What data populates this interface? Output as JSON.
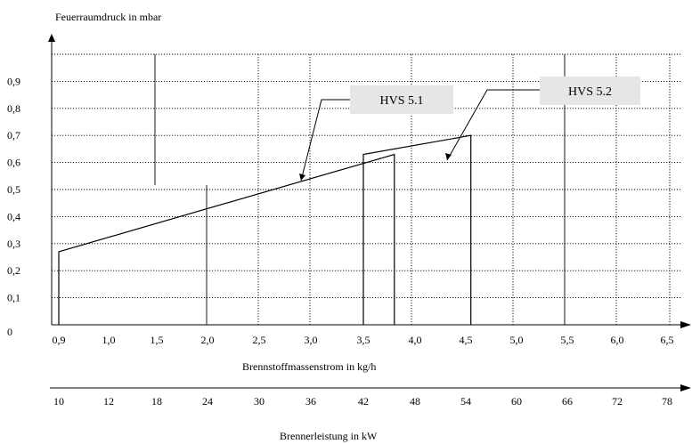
{
  "chart_data": {
    "type": "line",
    "ylabel": "Feuerraumdruck in mbar",
    "xlabel": "Brennstoffmassenstrom in kg/h",
    "x2label": "Brennerleistung in kW",
    "y_ticks": [
      "0",
      "0,1",
      "0,2",
      "0,3",
      "0,4",
      "0,5",
      "0,6",
      "0,7",
      "0,8",
      "0,9"
    ],
    "ylim": [
      0,
      1.05
    ],
    "x_ticks": [
      "0,9",
      "1,0",
      "1,5",
      "2,0",
      "2,5",
      "3,0",
      "3,5",
      "4,0",
      "4,5",
      "5,0",
      "5,5",
      "6,0",
      "6,5"
    ],
    "x2_ticks": [
      "10",
      "12",
      "18",
      "24",
      "30",
      "36",
      "42",
      "48",
      "54",
      "60",
      "66",
      "72",
      "78"
    ],
    "grid": true,
    "series": [
      {
        "name": "HVS 5.1",
        "color": "#000000",
        "points": [
          {
            "x": "0,9",
            "y": 0
          },
          {
            "x": "0,9",
            "y": 0.27
          },
          {
            "x": "3,8",
            "y": 0.63
          },
          {
            "x": "3,8",
            "y": 0
          }
        ]
      },
      {
        "name": "HVS 5.2",
        "color": "#000000",
        "points": [
          {
            "x": "3,5",
            "y": 0
          },
          {
            "x": "3,5",
            "y": 0.63
          },
          {
            "x": "4,55",
            "y": 0.7
          },
          {
            "x": "4,55",
            "y": 0
          }
        ]
      }
    ],
    "legend_box_color": "#e6e6e6"
  }
}
